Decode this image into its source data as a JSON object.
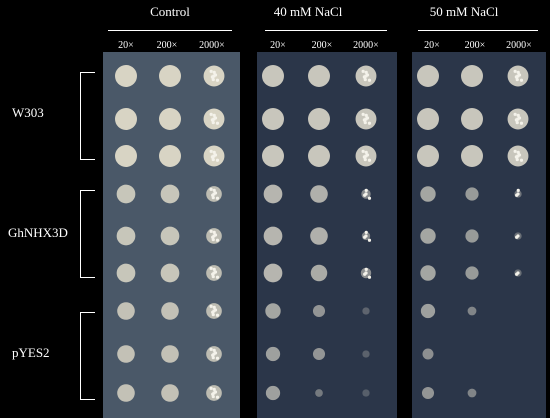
{
  "conditions": [
    {
      "label": "Control",
      "colors": {
        "plate": "#4a5868",
        "spot": "#d8d4c4"
      }
    },
    {
      "label": "40 mM NaCl",
      "colors": {
        "plate": "#2b3649",
        "spot": "#c8c6bc"
      }
    },
    {
      "label": "50 mM NaCl",
      "colors": {
        "plate": "#2b3649",
        "spot": "#c8c6bc"
      }
    }
  ],
  "dilutions": [
    "20×",
    "200×",
    "2000×"
  ],
  "strains": [
    {
      "label": "W303"
    },
    {
      "label": "GhNHX3D"
    },
    {
      "label": "pYES2"
    }
  ],
  "growth": [
    [
      [
        1,
        1,
        1
      ],
      [
        1,
        1,
        1
      ],
      [
        1,
        1,
        1
      ]
    ],
    [
      [
        1,
        1,
        1
      ],
      [
        1,
        1,
        1
      ],
      [
        1,
        1,
        1
      ]
    ],
    [
      [
        1,
        1,
        1
      ],
      [
        1,
        1,
        1
      ],
      [
        1,
        1,
        1
      ]
    ],
    [
      [
        0.85,
        0.85,
        0.75
      ],
      [
        0.85,
        0.8,
        0.45
      ],
      [
        0.7,
        0.6,
        0.25
      ]
    ],
    [
      [
        0.85,
        0.85,
        0.75
      ],
      [
        0.85,
        0.8,
        0.4
      ],
      [
        0.7,
        0.6,
        0.2
      ]
    ],
    [
      [
        0.85,
        0.85,
        0.75
      ],
      [
        0.85,
        0.75,
        0.5
      ],
      [
        0.7,
        0.6,
        0.2
      ]
    ],
    [
      [
        0.8,
        0.8,
        0.75
      ],
      [
        0.7,
        0.55,
        0.1
      ],
      [
        0.65,
        0.4,
        0
      ]
    ],
    [
      [
        0.8,
        0.8,
        0.75
      ],
      [
        0.65,
        0.55,
        0.08
      ],
      [
        0.5,
        0,
        0
      ]
    ],
    [
      [
        0.8,
        0.8,
        0.75
      ],
      [
        0.65,
        0.3,
        0.05
      ],
      [
        0.55,
        0.4,
        0
      ]
    ]
  ]
}
